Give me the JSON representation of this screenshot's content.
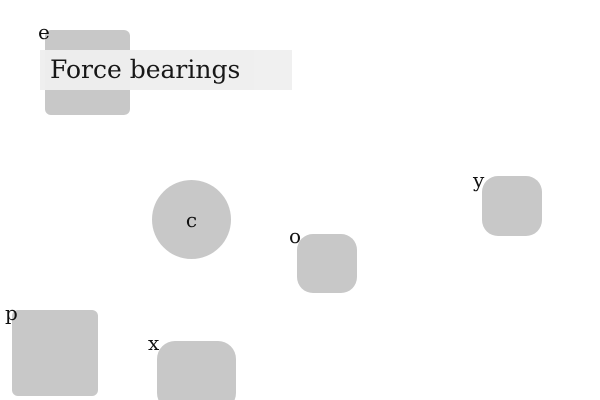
{
  "title": "Force bearings",
  "nodes": {
    "e": {
      "label": "e"
    },
    "c": {
      "label": "c"
    },
    "o": {
      "label": "o"
    },
    "y": {
      "label": "y"
    },
    "p": {
      "label": "p"
    },
    "x": {
      "label": "x"
    }
  },
  "colors": {
    "node_fill": "#c8c8c8",
    "title_bg": "#efefef",
    "background": "#ffffff"
  }
}
